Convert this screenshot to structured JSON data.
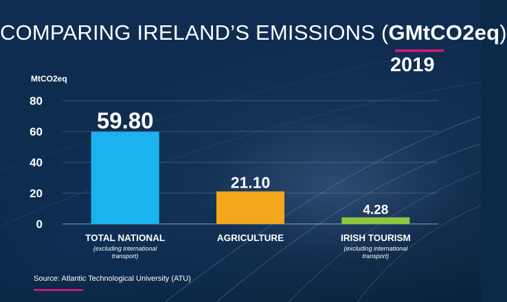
{
  "title_main": "COMPARING IRELAND’S EMISSIONS (",
  "title_bold": "GMtCO2eq",
  "title_close": ")",
  "year": "2019",
  "source": "Source: Atlantic Technological University (ATU)",
  "colors": {
    "accent": "#c41b74",
    "background": "#0b2a4a",
    "text": "#ffffff"
  },
  "chart_data": {
    "type": "bar",
    "ylabel": "MtCO2eq",
    "ylim": [
      0,
      80
    ],
    "yticks": [
      0,
      20,
      40,
      60,
      80
    ],
    "grid": true,
    "categories": [
      "TOTAL NATIONAL",
      "AGRICULTURE",
      "IRISH TOURISM"
    ],
    "category_notes": [
      [
        "(excluding international",
        "transport)"
      ],
      [],
      [
        "(excluding international",
        "transport)"
      ]
    ],
    "values": [
      59.8,
      21.1,
      4.28
    ],
    "value_labels": [
      "59.80",
      "21.10",
      "4.28"
    ],
    "colors": [
      "#1ab3f0",
      "#f4a71c",
      "#8dc63f"
    ]
  }
}
